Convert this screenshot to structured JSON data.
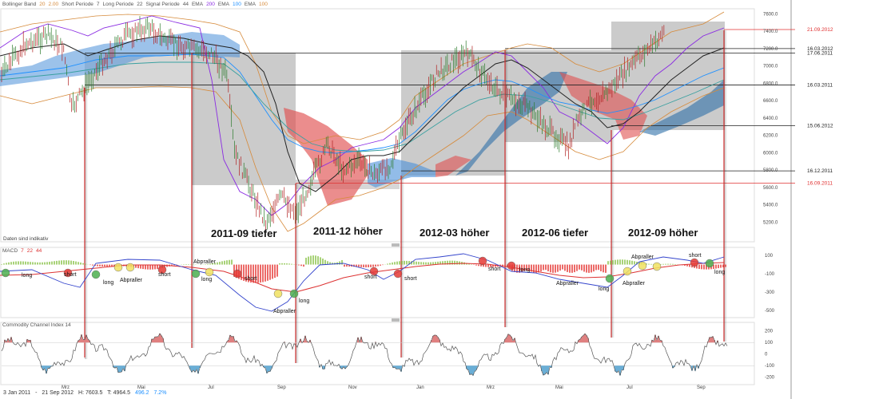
{
  "legend_price": [
    {
      "text": "Bollinger Band",
      "color": "#555555"
    },
    {
      "text": "20",
      "color": "#d68a3a"
    },
    {
      "text": "2.00",
      "color": "#d68a3a"
    },
    {
      "text": "Short Periode",
      "color": "#555555"
    },
    {
      "text": "7",
      "color": "#555555"
    },
    {
      "text": "Long Periode",
      "color": "#555555"
    },
    {
      "text": "22",
      "color": "#555555"
    },
    {
      "text": "Signal Periode",
      "color": "#555555"
    },
    {
      "text": "44",
      "color": "#555555"
    },
    {
      "text": "EMA",
      "color": "#555555"
    },
    {
      "text": "200",
      "color": "#8a2be2"
    },
    {
      "text": "EMA",
      "color": "#555555"
    },
    {
      "text": "100",
      "color": "#1e90ff"
    },
    {
      "text": "EMA",
      "color": "#555555"
    },
    {
      "text": "100",
      "color": "#d68a3a"
    }
  ],
  "macd_legend": [
    {
      "text": "MACD",
      "color": "#555555"
    },
    {
      "text": "7",
      "color": "#d33"
    },
    {
      "text": "22",
      "color": "#d33"
    },
    {
      "text": "44",
      "color": "#d33"
    }
  ],
  "cci_legend": "Commodity Channel Index  14",
  "watermark": "Daten sind indikativ",
  "status_bar": {
    "start": "3 Jan 2011",
    "sep": "-",
    "end": "21 Sep 2012",
    "high": "H: 7603.5",
    "low": "T: 4964.5",
    "change": "496.2",
    "pct": "7.2%"
  },
  "chart_data": {
    "type": "line",
    "title": "",
    "x_labels": [
      "Mrz",
      "Mai",
      "Jul",
      "Sep",
      "Nov",
      "Jan",
      "Mrz",
      "Mai",
      "Jul",
      "Sep"
    ],
    "price_axis": {
      "ticks": [
        "7600.0",
        "7400.0",
        "7200.0",
        "7000.0",
        "6800.0",
        "6600.0",
        "6400.0",
        "6200.0",
        "6000.0",
        "5800.0",
        "5600.0",
        "5400.0",
        "5200.0"
      ],
      "ylim": [
        5000,
        7650
      ]
    },
    "macd_axis": {
      "ticks": [
        "100",
        "-100",
        "-300",
        "-500"
      ],
      "ylim": [
        -560,
        170
      ]
    },
    "cci_axis": {
      "ticks": [
        "200",
        "100",
        "0",
        "-100",
        "-200"
      ],
      "ylim": [
        -250,
        260
      ]
    },
    "horizontal_levels": [
      {
        "label": "21.09.2012",
        "value": 7420,
        "color": "#e03030"
      },
      {
        "label": "16.03.2012",
        "value": 7200,
        "color": "#222222"
      },
      {
        "label": "17.06.2011",
        "value": 7150,
        "color": "#222222"
      },
      {
        "label": "16.03.2011",
        "value": 6780,
        "color": "#222222"
      },
      {
        "label": "15.06.2012",
        "value": 6310,
        "color": "#222222"
      },
      {
        "label": "16.12.2011",
        "value": 5790,
        "color": "#222222"
      },
      {
        "label": "16.09.2011",
        "value": 5650,
        "color": "#e03030"
      }
    ],
    "period_labels": [
      "2011-09 tiefer",
      "2011-12 höher",
      "2012-03 höher",
      "2012-06 tiefer",
      "2012-09 höher"
    ],
    "signal_annotations": [
      "long",
      "short",
      "long",
      "Abpraller",
      "short",
      "Abpraller",
      "long",
      "short",
      "long",
      "Abpraller",
      "short",
      "short",
      "short",
      "Abpraller",
      "long",
      "long",
      "Abpraller",
      "Abpraller",
      "short",
      "long"
    ],
    "price_series": [
      {
        "x": 0,
        "y": 6900
      },
      {
        "x": 0.03,
        "y": 7250
      },
      {
        "x": 0.06,
        "y": 7350
      },
      {
        "x": 0.08,
        "y": 7200
      },
      {
        "x": 0.09,
        "y": 6500
      },
      {
        "x": 0.1,
        "y": 6650
      },
      {
        "x": 0.13,
        "y": 7050
      },
      {
        "x": 0.16,
        "y": 7350
      },
      {
        "x": 0.19,
        "y": 7450
      },
      {
        "x": 0.21,
        "y": 7300
      },
      {
        "x": 0.24,
        "y": 7200
      },
      {
        "x": 0.27,
        "y": 7150
      },
      {
        "x": 0.29,
        "y": 6900
      },
      {
        "x": 0.3,
        "y": 6000
      },
      {
        "x": 0.32,
        "y": 5600
      },
      {
        "x": 0.34,
        "y": 5200
      },
      {
        "x": 0.36,
        "y": 5500
      },
      {
        "x": 0.38,
        "y": 5300
      },
      {
        "x": 0.4,
        "y": 5700
      },
      {
        "x": 0.42,
        "y": 6100
      },
      {
        "x": 0.44,
        "y": 5800
      },
      {
        "x": 0.46,
        "y": 5900
      },
      {
        "x": 0.48,
        "y": 5750
      },
      {
        "x": 0.5,
        "y": 5850
      },
      {
        "x": 0.52,
        "y": 6300
      },
      {
        "x": 0.54,
        "y": 6600
      },
      {
        "x": 0.56,
        "y": 6900
      },
      {
        "x": 0.58,
        "y": 7050
      },
      {
        "x": 0.6,
        "y": 7150
      },
      {
        "x": 0.62,
        "y": 6900
      },
      {
        "x": 0.64,
        "y": 6700
      },
      {
        "x": 0.66,
        "y": 6600
      },
      {
        "x": 0.68,
        "y": 6500
      },
      {
        "x": 0.7,
        "y": 6300
      },
      {
        "x": 0.72,
        "y": 6150
      },
      {
        "x": 0.73,
        "y": 6050
      },
      {
        "x": 0.74,
        "y": 6350
      },
      {
        "x": 0.76,
        "y": 6600
      },
      {
        "x": 0.78,
        "y": 6700
      },
      {
        "x": 0.8,
        "y": 6900
      },
      {
        "x": 0.82,
        "y": 7100
      },
      {
        "x": 0.84,
        "y": 7250
      },
      {
        "x": 0.855,
        "y": 7420
      }
    ]
  }
}
